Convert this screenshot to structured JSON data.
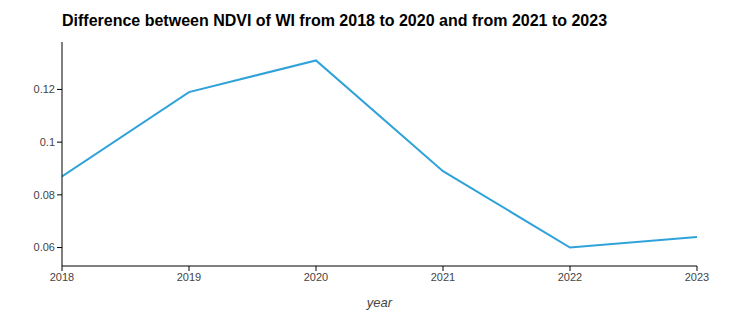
{
  "chart_data": {
    "type": "line",
    "title": "Difference between NDVI of WI from 2018 to 2020 and from 2021 to 2023",
    "x_label": "year",
    "x": [
      2018,
      2019,
      2020,
      2021,
      2022,
      2023
    ],
    "values": [
      0.087,
      0.119,
      0.131,
      0.089,
      0.06,
      0.064
    ],
    "color": "#30a2da",
    "xlim": [
      2018,
      2023
    ],
    "xticks": [
      2018,
      2019,
      2020,
      2021,
      2022,
      2023
    ],
    "ylim": [
      0.053,
      0.138
    ],
    "yticks": [
      0.06,
      0.08,
      0.1,
      0.12
    ],
    "grid": false
  }
}
